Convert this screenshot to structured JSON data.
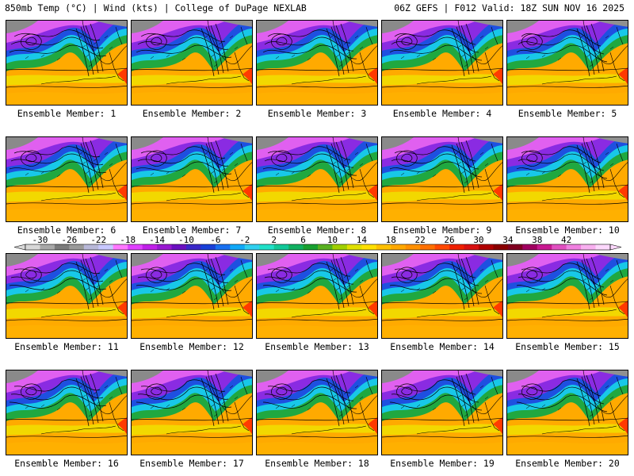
{
  "header": {
    "left": "850mb Temp (°C) | Wind (kts) | College of DuPage NEXLAB",
    "right": "06Z GEFS | F012 Valid: 18Z SUN NOV 16 2025"
  },
  "panels": [
    {
      "label": "Ensemble Member: 1"
    },
    {
      "label": "Ensemble Member: 2"
    },
    {
      "label": "Ensemble Member: 3"
    },
    {
      "label": "Ensemble Member: 4"
    },
    {
      "label": "Ensemble Member: 5"
    },
    {
      "label": "Ensemble Member: 6"
    },
    {
      "label": "Ensemble Member: 7"
    },
    {
      "label": "Ensemble Member: 8"
    },
    {
      "label": "Ensemble Member: 9"
    },
    {
      "label": "Ensemble Member: 10"
    },
    {
      "label": "Ensemble Member: 11"
    },
    {
      "label": "Ensemble Member: 12"
    },
    {
      "label": "Ensemble Member: 13"
    },
    {
      "label": "Ensemble Member: 14"
    },
    {
      "label": "Ensemble Member: 15"
    },
    {
      "label": "Ensemble Member: 16"
    },
    {
      "label": "Ensemble Member: 17"
    },
    {
      "label": "Ensemble Member: 18"
    },
    {
      "label": "Ensemble Member: 19"
    },
    {
      "label": "Ensemble Member: 20"
    }
  ],
  "colorbar": {
    "ticks": [
      "-30",
      "-26",
      "-22",
      "-18",
      "-14",
      "-10",
      "-6",
      "-2",
      "2",
      "6",
      "10",
      "14",
      "18",
      "22",
      "26",
      "30",
      "34",
      "38",
      "42"
    ],
    "colors": [
      "#d8d8d8",
      "#a8a8a8",
      "#7a7a7a",
      "#9a9a9a",
      "#b8b8d8",
      "#c8c8ff",
      "#ff78ff",
      "#e040ff",
      "#c020e8",
      "#9818d0",
      "#6a10c0",
      "#3a28c8",
      "#1840d8",
      "#1870f0",
      "#10a8f8",
      "#30d0f0",
      "#20e0c8",
      "#10c898",
      "#10b060",
      "#18a030",
      "#58b020",
      "#a0d000",
      "#e0e000",
      "#ffe000",
      "#ffc000",
      "#ffa800",
      "#ff9000",
      "#ff7000",
      "#ff4800",
      "#f02000",
      "#d81010",
      "#b00000",
      "#8a0000",
      "#800020",
      "#a00060",
      "#c81890",
      "#e050c0",
      "#f080e0",
      "#f8b0f0",
      "#fcd8fc"
    ]
  },
  "map_colors": {
    "cold_purple": "#8a2be2",
    "cold_blue": "#1e50e0",
    "cyan": "#18c8e8",
    "green": "#22a848",
    "yellow": "#f0e000",
    "orange": "#ffa800",
    "warm_red": "#ff3a00",
    "pink": "#e060f0",
    "contour": "#000000"
  }
}
